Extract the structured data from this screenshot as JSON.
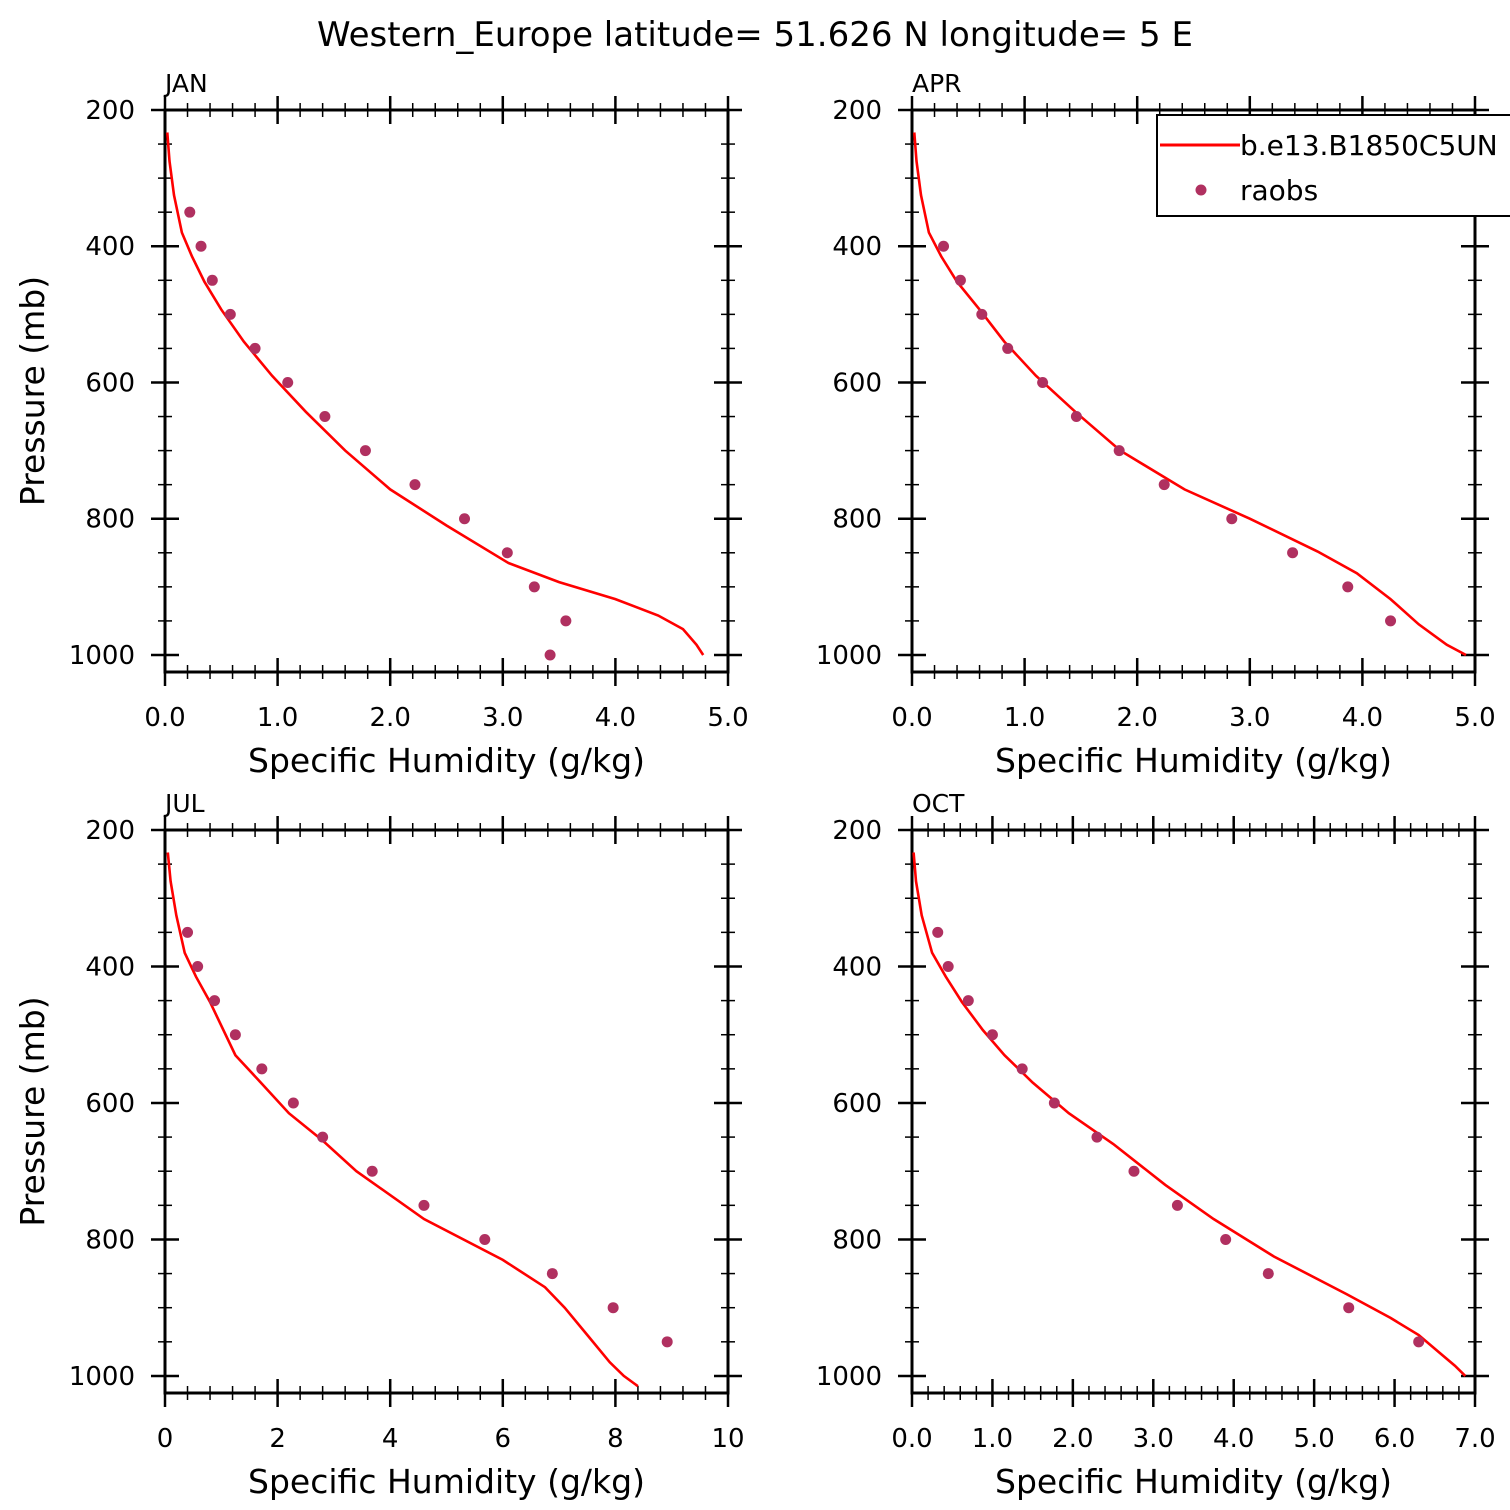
{
  "figure": {
    "title": "Western_Europe  latitude= 51.626 N longitude= 5 E",
    "colors": {
      "model": "#ff0000",
      "obs": "#b03060",
      "axes": "#000000"
    }
  },
  "legend": {
    "model_label": "b.e13.B1850C5UN",
    "obs_label": "raobs"
  },
  "chart_data": [
    {
      "type": "line",
      "title": "JAN",
      "xlabel": "Specific Humidity (g/kg)",
      "ylabel": "Pressure (mb)",
      "xlim": [
        0,
        5
      ],
      "ylim": [
        200,
        1025
      ],
      "y_inverted": true,
      "x_ticks": [
        "0.0",
        "1.0",
        "2.0",
        "3.0",
        "4.0",
        "5.0"
      ],
      "y_ticks": [
        "200",
        "400",
        "600",
        "800",
        "1000"
      ],
      "series": [
        {
          "name": "b.e13.B1850C5UN",
          "kind": "line",
          "x": [
            0.02,
            0.04,
            0.08,
            0.15,
            0.24,
            0.35,
            0.5,
            0.7,
            0.95,
            1.25,
            1.6,
            2.0,
            2.5,
            3.05,
            3.5,
            4.0,
            4.38,
            4.6,
            4.72,
            4.78
          ],
          "y": [
            233,
            275,
            325,
            380,
            415,
            452,
            493,
            540,
            590,
            643,
            700,
            757,
            810,
            865,
            893,
            918,
            942,
            962,
            985,
            1000
          ]
        },
        {
          "name": "raobs",
          "kind": "scatter",
          "x": [
            0.22,
            0.32,
            0.42,
            0.58,
            0.8,
            1.09,
            1.42,
            1.78,
            2.22,
            2.66,
            3.04,
            3.28,
            3.56,
            3.42
          ],
          "y": [
            350,
            400,
            450,
            500,
            550,
            600,
            650,
            700,
            750,
            800,
            850,
            900,
            950,
            1000
          ]
        }
      ]
    },
    {
      "type": "line",
      "title": "APR",
      "xlabel": "Specific Humidity (g/kg)",
      "ylabel": "",
      "xlim": [
        0,
        5
      ],
      "ylim": [
        200,
        1025
      ],
      "y_inverted": true,
      "x_ticks": [
        "0.0",
        "1.0",
        "2.0",
        "3.0",
        "4.0",
        "5.0"
      ],
      "y_ticks": [
        "200",
        "400",
        "600",
        "800",
        "1000"
      ],
      "show_legend": true,
      "series": [
        {
          "name": "b.e13.B1850C5UN",
          "kind": "line",
          "x": [
            0.02,
            0.04,
            0.08,
            0.15,
            0.26,
            0.4,
            0.6,
            0.82,
            1.1,
            1.45,
            1.85,
            2.42,
            3.0,
            3.6,
            3.95,
            4.25,
            4.5,
            4.75,
            4.92
          ],
          "y": [
            233,
            275,
            325,
            380,
            415,
            452,
            493,
            540,
            590,
            643,
            700,
            757,
            800,
            848,
            880,
            918,
            955,
            985,
            1000
          ]
        },
        {
          "name": "raobs",
          "kind": "scatter",
          "x": [
            0.28,
            0.43,
            0.62,
            0.85,
            1.16,
            1.46,
            1.84,
            2.24,
            2.84,
            3.38,
            3.87,
            4.25
          ],
          "y": [
            400,
            450,
            500,
            550,
            600,
            650,
            700,
            750,
            800,
            850,
            900,
            950
          ]
        }
      ]
    },
    {
      "type": "line",
      "title": "JUL",
      "xlabel": "Specific Humidity (g/kg)",
      "ylabel": "Pressure (mb)",
      "xlim": [
        0,
        10
      ],
      "ylim": [
        200,
        1025
      ],
      "y_inverted": true,
      "x_ticks": [
        "0",
        "2",
        "4",
        "6",
        "8",
        "10"
      ],
      "y_ticks": [
        "200",
        "400",
        "600",
        "800",
        "1000"
      ],
      "series": [
        {
          "name": "b.e13.B1850C5UN",
          "kind": "line",
          "x": [
            0.05,
            0.1,
            0.2,
            0.35,
            0.55,
            0.8,
            1.25,
            1.7,
            2.2,
            2.8,
            3.4,
            4.6,
            6.0,
            6.75,
            7.1,
            7.5,
            7.9,
            8.15,
            8.4
          ],
          "y": [
            233,
            275,
            325,
            380,
            415,
            452,
            530,
            570,
            615,
            655,
            700,
            770,
            830,
            870,
            900,
            940,
            980,
            1000,
            1015
          ]
        },
        {
          "name": "raobs",
          "kind": "scatter",
          "x": [
            0.4,
            0.58,
            0.88,
            1.25,
            1.72,
            2.28,
            2.8,
            3.68,
            4.6,
            5.68,
            6.88,
            7.96,
            8.92
          ],
          "y": [
            350,
            400,
            450,
            500,
            550,
            600,
            650,
            700,
            750,
            800,
            850,
            900,
            950
          ]
        }
      ]
    },
    {
      "type": "line",
      "title": "OCT",
      "xlabel": "Specific Humidity (g/kg)",
      "ylabel": "",
      "xlim": [
        0,
        7
      ],
      "ylim": [
        200,
        1025
      ],
      "y_inverted": true,
      "x_ticks": [
        "0.0",
        "1.0",
        "2.0",
        "3.0",
        "4.0",
        "5.0",
        "6.0",
        "7.0"
      ],
      "y_ticks": [
        "200",
        "400",
        "600",
        "800",
        "1000"
      ],
      "series": [
        {
          "name": "b.e13.B1850C5UN",
          "kind": "line",
          "x": [
            0.02,
            0.05,
            0.12,
            0.25,
            0.42,
            0.62,
            0.88,
            1.15,
            1.5,
            1.95,
            2.5,
            3.15,
            3.75,
            4.5,
            5.4,
            5.95,
            6.3,
            6.55,
            6.75,
            6.88
          ],
          "y": [
            233,
            275,
            325,
            380,
            415,
            452,
            493,
            530,
            570,
            615,
            660,
            720,
            770,
            825,
            880,
            915,
            940,
            965,
            985,
            1000
          ]
        },
        {
          "name": "raobs",
          "kind": "scatter",
          "x": [
            0.32,
            0.45,
            0.7,
            1.0,
            1.37,
            1.77,
            2.3,
            2.76,
            3.3,
            3.9,
            4.43,
            5.43,
            6.3
          ],
          "y": [
            350,
            400,
            450,
            500,
            550,
            600,
            650,
            700,
            750,
            800,
            850,
            900,
            950
          ]
        }
      ]
    }
  ]
}
